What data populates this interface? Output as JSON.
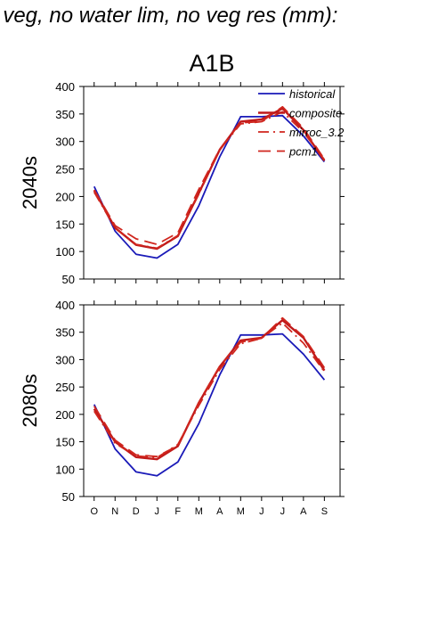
{
  "figure": {
    "title": "f veg, no water lim, no veg res (mm):",
    "scenario": "A1B"
  },
  "colors": {
    "historical": "#1a1ab8",
    "composite": "#c01a1a",
    "mirroc_3.2": "#d0261e",
    "pcm1": "#d0261e"
  },
  "chart_data": [
    {
      "type": "line",
      "ylabel": "2040s",
      "ylim": [
        50,
        400
      ],
      "yticks": [
        50,
        100,
        150,
        200,
        250,
        300,
        350,
        400
      ],
      "categories": [
        "O",
        "N",
        "D",
        "J",
        "F",
        "M",
        "A",
        "M",
        "J",
        "J",
        "A",
        "S"
      ],
      "show_xtick_labels": false,
      "legend": {
        "position": "top-right",
        "entries": [
          "historical",
          "composite",
          "mirroc_3.2",
          "pcm1"
        ]
      },
      "series": [
        {
          "name": "historical",
          "style": "solid",
          "values": [
            218,
            137,
            95,
            88,
            113,
            183,
            272,
            345,
            345,
            347,
            310,
            263
          ]
        },
        {
          "name": "composite",
          "style": "solid-thick",
          "values": [
            211,
            143,
            112,
            105,
            128,
            206,
            285,
            336,
            340,
            360,
            321,
            265
          ]
        },
        {
          "name": "mirroc_3.2",
          "style": "dashdot",
          "values": [
            208,
            142,
            113,
            106,
            129,
            204,
            285,
            332,
            336,
            354,
            317,
            267
          ]
        },
        {
          "name": "pcm1",
          "style": "dashed",
          "values": [
            212,
            147,
            123,
            113,
            134,
            213,
            286,
            334,
            336,
            363,
            324,
            268
          ]
        }
      ]
    },
    {
      "type": "line",
      "ylabel": "2080s",
      "ylim": [
        50,
        400
      ],
      "yticks": [
        50,
        100,
        150,
        200,
        250,
        300,
        350,
        400
      ],
      "categories": [
        "O",
        "N",
        "D",
        "J",
        "F",
        "M",
        "A",
        "M",
        "J",
        "J",
        "A",
        "S"
      ],
      "show_xtick_labels": true,
      "series": [
        {
          "name": "historical",
          "style": "solid",
          "values": [
            218,
            137,
            95,
            88,
            113,
            183,
            272,
            345,
            345,
            347,
            310,
            263
          ]
        },
        {
          "name": "composite",
          "style": "solid-thick",
          "values": [
            210,
            150,
            122,
            118,
            142,
            221,
            287,
            335,
            340,
            372,
            340,
            280
          ]
        },
        {
          "name": "mirroc_3.2",
          "style": "dashdot",
          "values": [
            206,
            147,
            124,
            121,
            145,
            216,
            282,
            329,
            339,
            367,
            330,
            278
          ]
        },
        {
          "name": "pcm1",
          "style": "dashed",
          "values": [
            215,
            153,
            126,
            123,
            143,
            222,
            288,
            332,
            339,
            376,
            342,
            285
          ]
        }
      ]
    }
  ]
}
